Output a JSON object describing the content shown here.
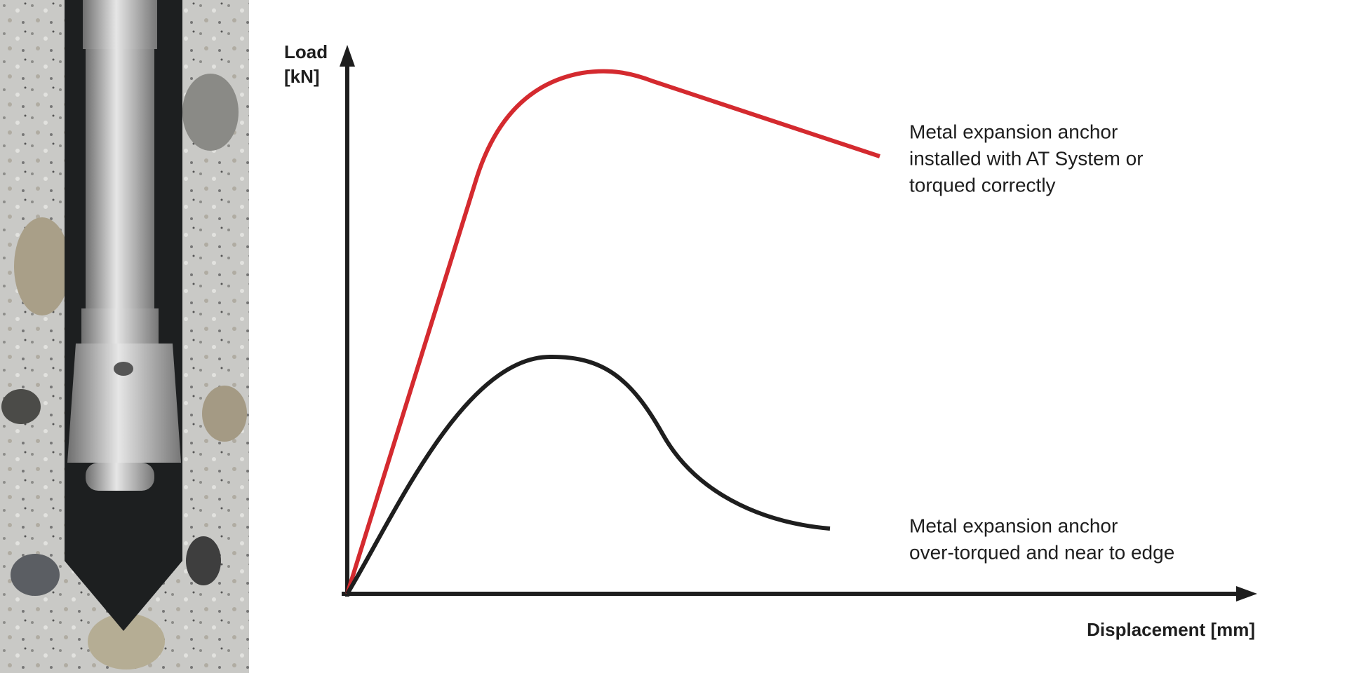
{
  "y_axis": {
    "label_lines": [
      "Load",
      "[kN]"
    ]
  },
  "x_axis": {
    "label": "Displacement [mm]"
  },
  "curves": [
    {
      "label_lines": [
        "Metal expansion anchor",
        "installed with AT System or",
        "torqued correctly"
      ]
    },
    {
      "label_lines": [
        "Metal expansion anchor",
        "over-torqued and near to edge"
      ]
    }
  ]
}
